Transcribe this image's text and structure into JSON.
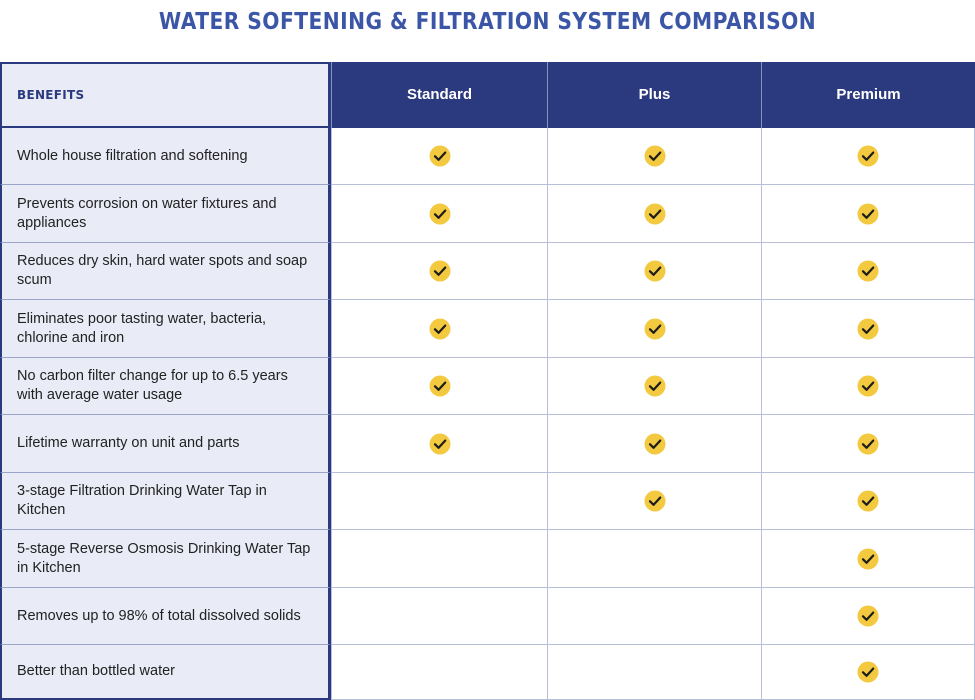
{
  "title": "WATER SOFTENING & FILTRATION SYSTEM COMPARISON",
  "header": {
    "benefits_label": "BENEFITS",
    "plans": [
      "Standard",
      "Plus",
      "Premium"
    ]
  },
  "colors": {
    "header_bg": "#2b3a7e",
    "benefit_bg": "#e9ecf6",
    "title": "#3c56a7",
    "check_fill": "#f3c93f"
  },
  "icon": "check-circle-icon",
  "rows": [
    {
      "benefit": "Whole house filtration and softening",
      "standard": true,
      "plus": true,
      "premium": true
    },
    {
      "benefit": "Prevents corrosion on water fixtures and appliances",
      "standard": true,
      "plus": true,
      "premium": true
    },
    {
      "benefit": "Reduces dry skin, hard water spots and soap scum",
      "standard": true,
      "plus": true,
      "premium": true
    },
    {
      "benefit": "Eliminates poor tasting water, bacteria, chlorine and iron",
      "standard": true,
      "plus": true,
      "premium": true
    },
    {
      "benefit": "No carbon filter change for up to 6.5 years with average water usage",
      "standard": true,
      "plus": true,
      "premium": true
    },
    {
      "benefit": "Lifetime warranty on unit and parts",
      "standard": true,
      "plus": true,
      "premium": true
    },
    {
      "benefit": "3-stage Filtration Drinking Water Tap in Kitchen",
      "standard": false,
      "plus": true,
      "premium": true
    },
    {
      "benefit": "5-stage Reverse Osmosis Drinking Water Tap in Kitchen",
      "standard": false,
      "plus": false,
      "premium": true
    },
    {
      "benefit": "Removes up to 98% of total dissolved solids",
      "standard": false,
      "plus": false,
      "premium": true
    },
    {
      "benefit": "Better than bottled water",
      "standard": false,
      "plus": false,
      "premium": true
    }
  ]
}
